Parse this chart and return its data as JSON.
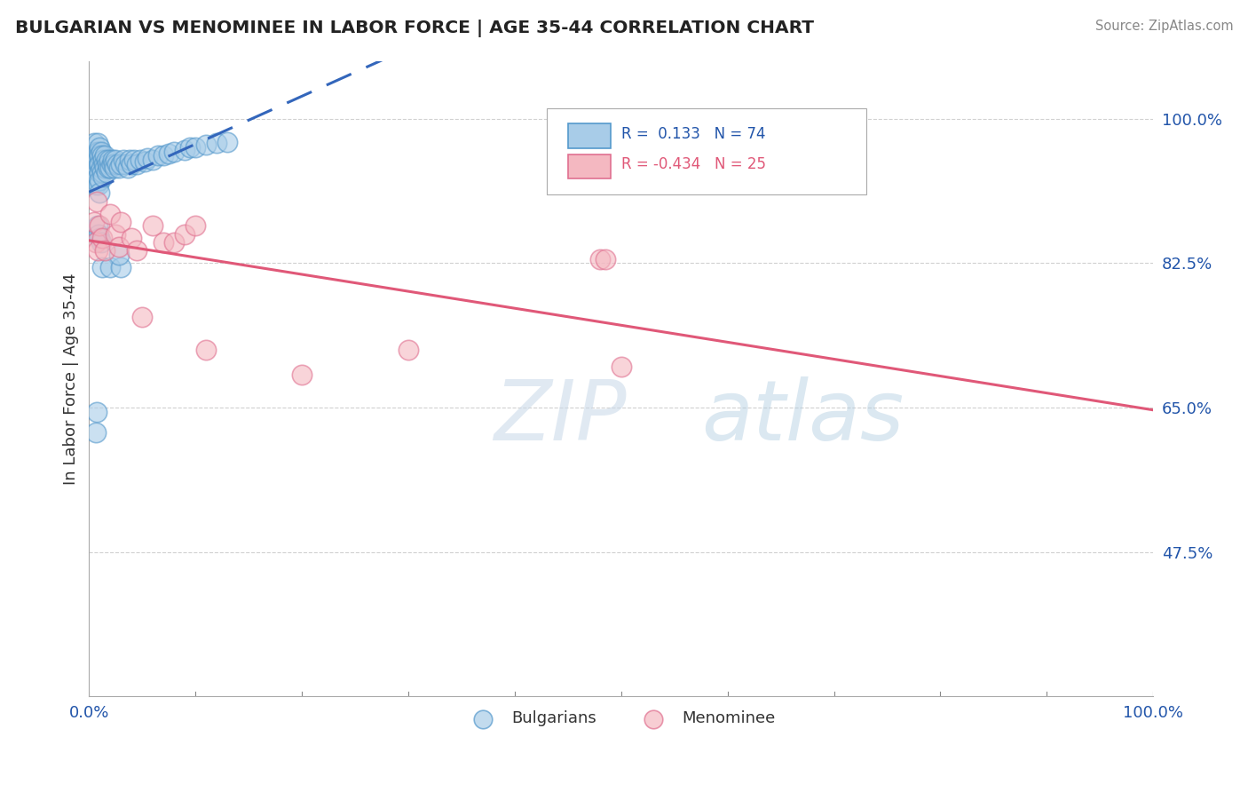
{
  "title": "BULGARIAN VS MENOMINEE IN LABOR FORCE | AGE 35-44 CORRELATION CHART",
  "source": "Source: ZipAtlas.com",
  "ylabel": "In Labor Force | Age 35-44",
  "xlim": [
    0.0,
    1.0
  ],
  "ylim": [
    0.3,
    1.07
  ],
  "yticks": [
    0.475,
    0.65,
    0.825,
    1.0
  ],
  "ytick_labels": [
    "47.5%",
    "65.0%",
    "82.5%",
    "100.0%"
  ],
  "legend_r_bulgarian": " 0.133",
  "legend_n_bulgarian": "74",
  "legend_r_menominee": "-0.434",
  "legend_n_menominee": "25",
  "bulgarian_fill": "#a8cce8",
  "bulgarian_edge": "#5599cc",
  "menominee_fill": "#f4b8c1",
  "menominee_edge": "#e07090",
  "trend_bulgarian_color": "#3366bb",
  "trend_menominee_color": "#e05878",
  "watermark_zip": "ZIP",
  "watermark_atlas": "atlas",
  "background_color": "#ffffff",
  "bulgarian_x": [
    0.003,
    0.004,
    0.005,
    0.005,
    0.006,
    0.006,
    0.007,
    0.007,
    0.008,
    0.008,
    0.008,
    0.009,
    0.009,
    0.009,
    0.01,
    0.01,
    0.01,
    0.01,
    0.01,
    0.01,
    0.011,
    0.011,
    0.012,
    0.012,
    0.013,
    0.013,
    0.014,
    0.015,
    0.015,
    0.016,
    0.016,
    0.017,
    0.018,
    0.019,
    0.02,
    0.021,
    0.022,
    0.023,
    0.024,
    0.025,
    0.026,
    0.028,
    0.03,
    0.032,
    0.034,
    0.036,
    0.038,
    0.04,
    0.042,
    0.045,
    0.048,
    0.052,
    0.055,
    0.06,
    0.065,
    0.07,
    0.075,
    0.08,
    0.09,
    0.095,
    0.1,
    0.11,
    0.12,
    0.13,
    0.008,
    0.009,
    0.01,
    0.011,
    0.007,
    0.006,
    0.012,
    0.02,
    0.03,
    0.028
  ],
  "bulgarian_y": [
    0.96,
    0.94,
    0.97,
    0.93,
    0.95,
    0.92,
    0.96,
    0.94,
    0.97,
    0.95,
    0.93,
    0.96,
    0.945,
    0.92,
    0.965,
    0.955,
    0.945,
    0.935,
    0.925,
    0.91,
    0.96,
    0.94,
    0.955,
    0.935,
    0.95,
    0.93,
    0.945,
    0.955,
    0.94,
    0.95,
    0.935,
    0.945,
    0.94,
    0.95,
    0.94,
    0.945,
    0.95,
    0.945,
    0.94,
    0.95,
    0.945,
    0.94,
    0.945,
    0.95,
    0.945,
    0.94,
    0.95,
    0.945,
    0.95,
    0.945,
    0.95,
    0.948,
    0.952,
    0.95,
    0.955,
    0.955,
    0.958,
    0.96,
    0.962,
    0.965,
    0.965,
    0.968,
    0.97,
    0.972,
    0.87,
    0.86,
    0.855,
    0.85,
    0.645,
    0.62,
    0.82,
    0.82,
    0.82,
    0.835
  ],
  "menominee_x": [
    0.005,
    0.006,
    0.007,
    0.008,
    0.01,
    0.012,
    0.015,
    0.02,
    0.025,
    0.028,
    0.03,
    0.04,
    0.045,
    0.05,
    0.06,
    0.07,
    0.08,
    0.09,
    0.1,
    0.11,
    0.2,
    0.3,
    0.48,
    0.485,
    0.5
  ],
  "menominee_y": [
    0.875,
    0.85,
    0.9,
    0.84,
    0.87,
    0.855,
    0.84,
    0.885,
    0.86,
    0.845,
    0.875,
    0.855,
    0.84,
    0.76,
    0.87,
    0.85,
    0.85,
    0.86,
    0.87,
    0.72,
    0.69,
    0.72,
    0.83,
    0.83,
    0.7
  ]
}
